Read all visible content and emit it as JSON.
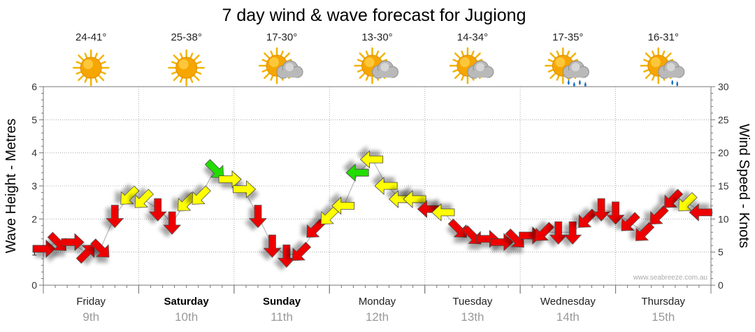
{
  "chart_data": {
    "type": "line",
    "title": "7 day wind & wave forecast for Jugiong",
    "ylabel_left": "Wave Height - Metres",
    "ylabel_right": "Wind Speed - Knots",
    "ylim_left": [
      0,
      6
    ],
    "ylim_right": [
      0,
      30
    ],
    "yticks_left": [
      "0",
      "1",
      "2",
      "3",
      "4",
      "5",
      "6"
    ],
    "yticks_right": [
      "0",
      "5",
      "10",
      "15",
      "20",
      "25",
      "30"
    ],
    "grid": true,
    "credit": "www.seabreeze.com.au",
    "days": [
      {
        "day": "Friday",
        "date": "9th",
        "temp": "24-41°",
        "weather": "sunny",
        "bold": false
      },
      {
        "day": "Saturday",
        "date": "10th",
        "temp": "25-38°",
        "weather": "sunny",
        "bold": true
      },
      {
        "day": "Sunday",
        "date": "11th",
        "temp": "17-30°",
        "weather": "partly-cloudy",
        "bold": true
      },
      {
        "day": "Monday",
        "date": "12th",
        "temp": "13-30°",
        "weather": "partly-cloudy",
        "bold": false
      },
      {
        "day": "Tuesday",
        "date": "13th",
        "temp": "14-34°",
        "weather": "partly-cloudy",
        "bold": false
      },
      {
        "day": "Wednesday",
        "date": "14th",
        "temp": "17-35°",
        "weather": "shower",
        "bold": false
      },
      {
        "day": "Thursday",
        "date": "15th",
        "temp": "16-31°",
        "weather": "light-shower",
        "bold": false
      }
    ],
    "colors": {
      "red": "#ee0000",
      "yellow": "#ffff00",
      "green": "#22dd00",
      "grid": "#999999",
      "date": "#999999"
    },
    "series": [
      {
        "units": "knots",
        "x": [
          0.0,
          0.15,
          0.3,
          0.45,
          0.6,
          0.75,
          0.9,
          1.05,
          1.2,
          1.35,
          1.5,
          1.65,
          1.8,
          1.95,
          2.1,
          2.25,
          2.4,
          2.55,
          2.7,
          2.85,
          3.0,
          3.15,
          3.3,
          3.45,
          3.6,
          3.75,
          3.9,
          4.05,
          4.2,
          4.35,
          4.5,
          4.65,
          4.8,
          4.95,
          5.1,
          5.25,
          5.4,
          5.55,
          5.7,
          5.85,
          6.0,
          6.15,
          6.3,
          6.45,
          6.6,
          6.75,
          6.9
        ],
        "values": [
          5.5,
          6.5,
          6.5,
          4.8,
          5.5,
          10.5,
          13.5,
          13,
          11.5,
          9.5,
          12.5,
          13.5,
          17.5,
          16,
          14.5,
          10.5,
          6,
          4.5,
          5,
          8.5,
          10.5,
          12,
          17,
          19,
          15,
          13,
          13,
          11.5,
          11,
          8.5,
          7.5,
          7,
          6.5,
          7,
          7.5,
          8,
          8,
          8,
          10,
          11.5,
          11,
          9.5,
          8,
          10.5,
          13,
          12.5,
          11
        ],
        "directions": [
          "W",
          "NW",
          "W",
          "SW",
          "NW",
          "N",
          "NE",
          "NE",
          "N",
          "N",
          "NE",
          "NE",
          "NW",
          "W",
          "W",
          "N",
          "N",
          "N",
          "NE",
          "NE",
          "NE",
          "E",
          "E",
          "E",
          "E",
          "E",
          "E",
          "E",
          "E",
          "NW",
          "NW",
          "W",
          "W",
          "NW",
          "W",
          "NE",
          "N",
          "N",
          "NE",
          "N",
          "N",
          "NE",
          "NE",
          "NE",
          "NE",
          "NE",
          "E"
        ],
        "colors": [
          "red",
          "red",
          "red",
          "red",
          "red",
          "red",
          "yellow",
          "yellow",
          "red",
          "red",
          "yellow",
          "yellow",
          "green",
          "yellow",
          "yellow",
          "red",
          "red",
          "red",
          "red",
          "red",
          "yellow",
          "yellow",
          "green",
          "yellow",
          "yellow",
          "yellow",
          "yellow",
          "red",
          "yellow",
          "red",
          "red",
          "red",
          "red",
          "red",
          "red",
          "red",
          "red",
          "red",
          "red",
          "red",
          "red",
          "red",
          "red",
          "red",
          "red",
          "yellow",
          "red"
        ]
      }
    ]
  }
}
